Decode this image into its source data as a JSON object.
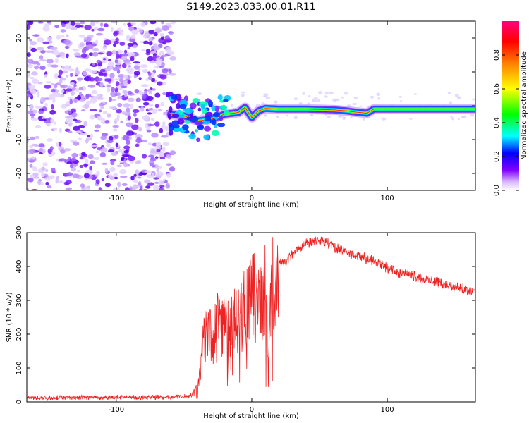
{
  "title": "S149.2023.033.00.01.R11",
  "chart_data": [
    {
      "type": "heatmap",
      "xlabel": "Height of straight line (km)",
      "ylabel": "Frequency (Hz)",
      "xlim": [
        -166,
        165
      ],
      "ylim": [
        -25,
        25
      ],
      "x_ticks": [
        -100,
        0,
        100
      ],
      "x_tick_labels": [
        "-100",
        "0",
        "100"
      ],
      "y_ticks": [
        -20,
        -10,
        0,
        10,
        20
      ],
      "y_tick_labels": [
        "-20",
        "-10",
        "0",
        "10",
        "20"
      ],
      "colorbar": {
        "label": "Normalized spectral amplitude",
        "range": [
          0,
          1
        ],
        "ticks": [
          0.0,
          0.2,
          0.4,
          0.6,
          0.8
        ],
        "tick_labels": [
          "0.0",
          "0.2",
          "0.4",
          "0.6",
          "0.8"
        ],
        "colors": [
          "#ffffff",
          "#c8a0ff",
          "#8000ff",
          "#0000ff",
          "#00ffff",
          "#00ff00",
          "#ffff00",
          "#ff8000",
          "#ff0000",
          "#ff0080"
        ]
      },
      "ridge": {
        "x": [
          -60,
          -50,
          -40,
          -30,
          -20,
          -10,
          -5,
          0,
          5,
          10,
          20,
          40,
          60,
          70,
          75,
          80,
          85,
          90,
          95,
          100,
          110,
          120,
          140,
          165
        ],
        "y": [
          -2.5,
          -3.0,
          -4.5,
          -4.0,
          -2.5,
          -2.0,
          -0.5,
          -3.5,
          -1.5,
          -0.8,
          -1.0,
          -1.0,
          -1.2,
          -1.5,
          -1.8,
          -2.0,
          -2.2,
          -1.0,
          -1.0,
          -1.0,
          -1.0,
          -1.0,
          -1.0,
          -1.0
        ]
      }
    },
    {
      "type": "line",
      "xlabel": "Height of straight line (km)",
      "ylabel": "SNR (10 * v/v)",
      "xlim": [
        -166,
        165
      ],
      "ylim": [
        0,
        500
      ],
      "x_ticks": [
        -100,
        0,
        100
      ],
      "x_tick_labels": [
        "-100",
        "0",
        "100"
      ],
      "y_ticks": [
        0,
        100,
        200,
        300,
        400,
        500
      ],
      "y_tick_labels": [
        "0",
        "100",
        "200",
        "300",
        "400",
        "500"
      ],
      "line_color": "#ee2222",
      "series": [
        {
          "x": [
            -166,
            -150,
            -130,
            -110,
            -90,
            -70,
            -50,
            -45,
            -40,
            -38,
            -35,
            -32,
            -30,
            -25,
            -20,
            -15,
            -10,
            -5,
            0,
            5,
            10,
            12,
            15,
            20,
            25,
            30,
            40,
            50,
            60,
            70,
            80,
            90,
            100,
            110,
            120,
            130,
            140,
            150,
            160,
            165
          ],
          "y": [
            12,
            12,
            13,
            13,
            13,
            14,
            15,
            20,
            40,
            80,
            200,
            250,
            170,
            260,
            230,
            220,
            250,
            270,
            300,
            310,
            330,
            150,
            330,
            420,
            410,
            440,
            470,
            480,
            460,
            440,
            430,
            415,
            395,
            380,
            370,
            360,
            350,
            340,
            330,
            330
          ]
        }
      ]
    }
  ]
}
